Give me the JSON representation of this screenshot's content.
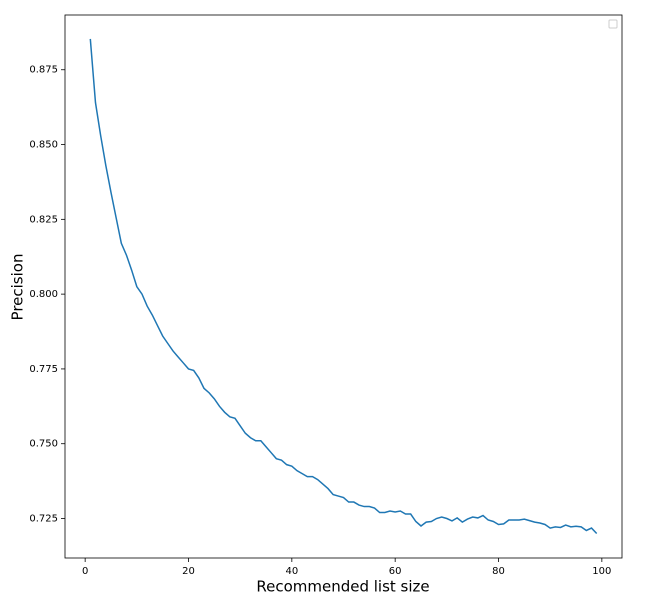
{
  "chart_data": {
    "type": "line",
    "x_label": "Recommended list size",
    "y_label": "Precision",
    "x": [
      1,
      2,
      3,
      4,
      5,
      6,
      7,
      8,
      9,
      10,
      11,
      12,
      13,
      14,
      15,
      16,
      17,
      18,
      19,
      20,
      21,
      22,
      23,
      24,
      25,
      26,
      27,
      28,
      29,
      30,
      31,
      32,
      33,
      34,
      35,
      36,
      37,
      38,
      39,
      40,
      41,
      42,
      43,
      44,
      45,
      46,
      47,
      48,
      49,
      50,
      51,
      52,
      53,
      54,
      55,
      56,
      57,
      58,
      59,
      60,
      61,
      62,
      63,
      64,
      65,
      66,
      67,
      68,
      69,
      70,
      71,
      72,
      73,
      74,
      75,
      76,
      77,
      78,
      79,
      80,
      81,
      82,
      83,
      84,
      85,
      86,
      87,
      88,
      89,
      90,
      91,
      92,
      93,
      94,
      95,
      96,
      97,
      98,
      99
    ],
    "series": [
      {
        "color": "#1f77b4",
        "values": [
          0.8853,
          0.864,
          0.853,
          0.843,
          0.834,
          0.8255,
          0.817,
          0.813,
          0.808,
          0.8025,
          0.8,
          0.796,
          0.793,
          0.7895,
          0.786,
          0.7835,
          0.781,
          0.779,
          0.777,
          0.775,
          0.7745,
          0.772,
          0.7685,
          0.767,
          0.765,
          0.7625,
          0.7605,
          0.759,
          0.7585,
          0.756,
          0.7535,
          0.752,
          0.751,
          0.751,
          0.749,
          0.747,
          0.745,
          0.7445,
          0.743,
          0.7425,
          0.741,
          0.74,
          0.739,
          0.739,
          0.738,
          0.7365,
          0.735,
          0.733,
          0.7325,
          0.732,
          0.7305,
          0.7305,
          0.7295,
          0.729,
          0.729,
          0.7285,
          0.727,
          0.727,
          0.7275,
          0.7272,
          0.7275,
          0.7265,
          0.7265,
          0.724,
          0.7225,
          0.7238,
          0.724,
          0.725,
          0.7255,
          0.725,
          0.7242,
          0.7252,
          0.7238,
          0.7248,
          0.7255,
          0.7252,
          0.726,
          0.7245,
          0.724,
          0.723,
          0.7232,
          0.7245,
          0.7245,
          0.7245,
          0.7248,
          0.7243,
          0.7238,
          0.7235,
          0.723,
          0.7218,
          0.7222,
          0.722,
          0.7228,
          0.7222,
          0.7224,
          0.7222,
          0.721,
          0.7218,
          0.72
        ]
      }
    ],
    "xlim": [
      -3.9,
      103.9
    ],
    "xticks": [
      0,
      20,
      40,
      60,
      80,
      100
    ],
    "ylim": [
      0.7118,
      0.8933
    ],
    "yticks": [
      0.725,
      {
        "value": 0.75,
        "label": "0.750"
      },
      0.775,
      {
        "value": 0.8,
        "label": "0.800"
      },
      0.825,
      {
        "value": 0.85,
        "label": "0.850"
      },
      0.875
    ],
    "grid": false
  }
}
